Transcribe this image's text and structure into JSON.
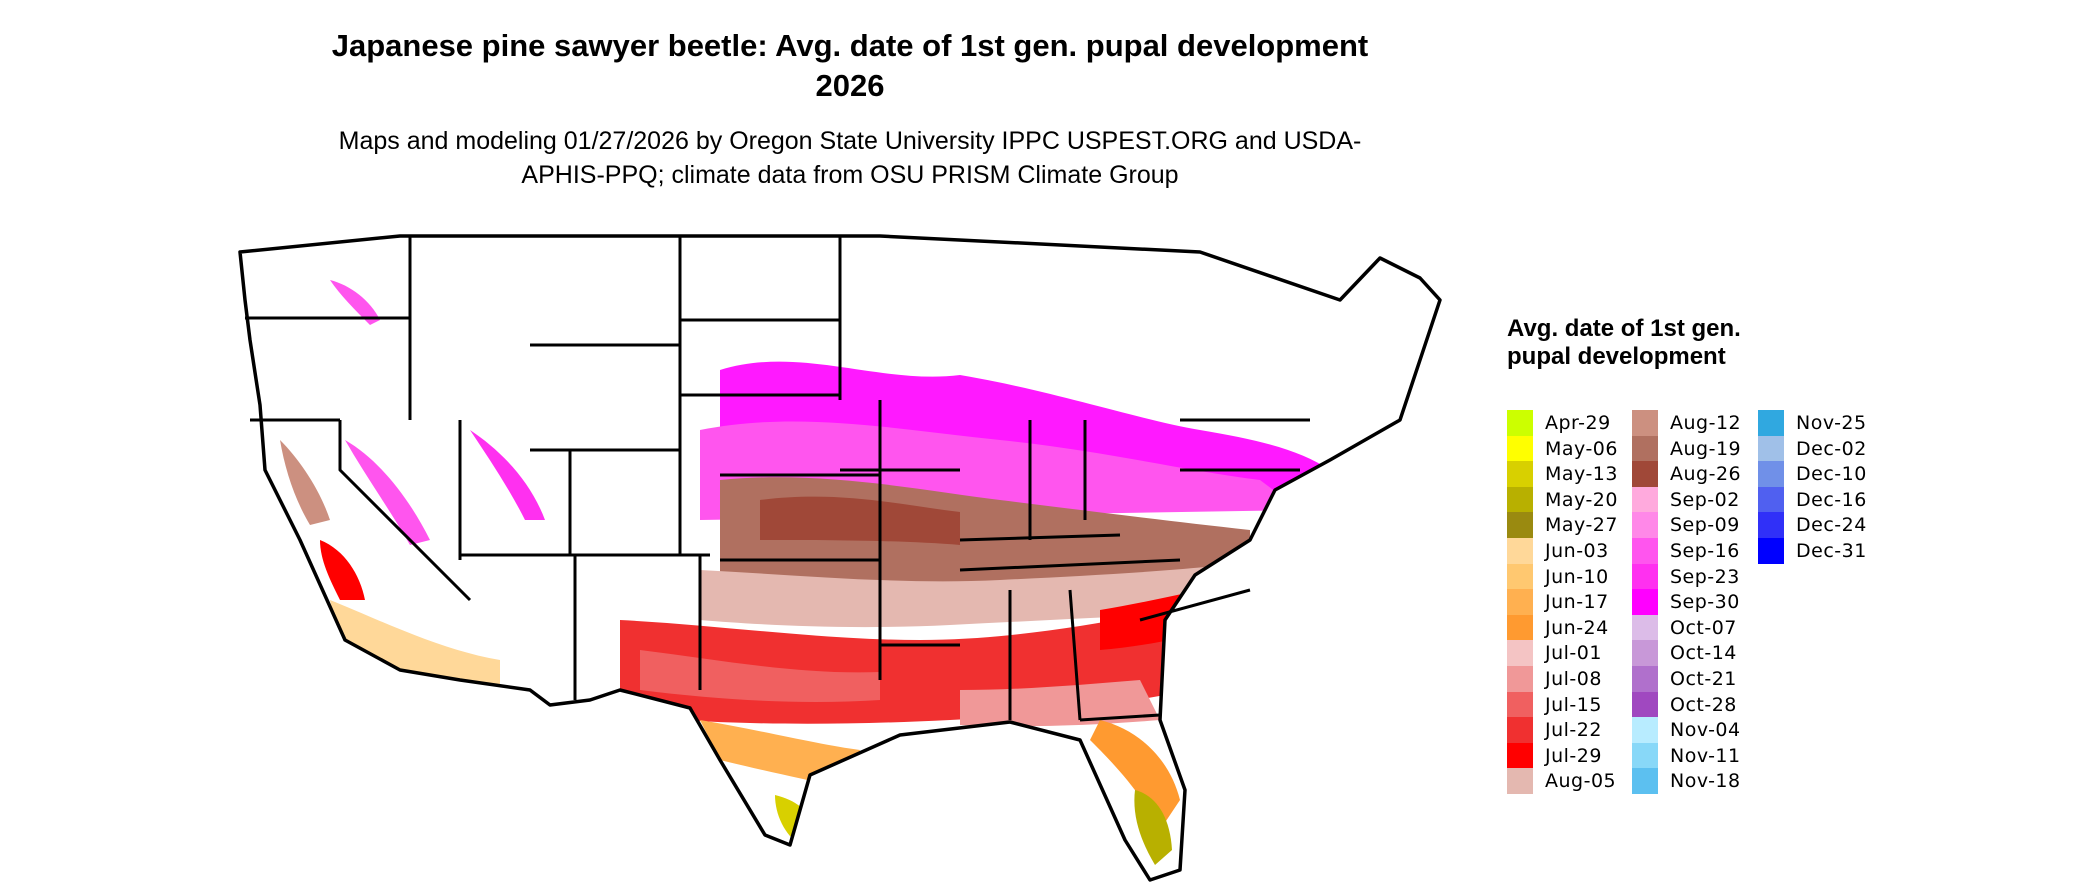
{
  "title": "Japanese pine sawyer beetle: Avg. date of 1st gen. pupal development 2026",
  "subtitle": "Maps and modeling 01/27/2026 by Oregon State University IPPC USPEST.ORG and USDA-APHIS-PPQ; climate data from OSU PRISM Climate Group",
  "legend": {
    "title": "Avg. date of 1st gen. pupal development",
    "items": [
      {
        "label": "Apr-29",
        "color": "#ccff00"
      },
      {
        "label": "May-06",
        "color": "#ffff00"
      },
      {
        "label": "May-13",
        "color": "#d8d000"
      },
      {
        "label": "May-20",
        "color": "#b8b000"
      },
      {
        "label": "May-27",
        "color": "#9a8a10"
      },
      {
        "label": "Jun-03",
        "color": "#ffd899"
      },
      {
        "label": "Jun-10",
        "color": "#ffc870"
      },
      {
        "label": "Jun-17",
        "color": "#ffb050"
      },
      {
        "label": "Jun-24",
        "color": "#ff9a30"
      },
      {
        "label": "Jul-01",
        "color": "#f4c4c4"
      },
      {
        "label": "Jul-08",
        "color": "#f09898"
      },
      {
        "label": "Jul-15",
        "color": "#f06060"
      },
      {
        "label": "Jul-22",
        "color": "#f03030"
      },
      {
        "label": "Jul-29",
        "color": "#ff0000"
      },
      {
        "label": "Aug-05",
        "color": "#e4b8b0"
      },
      {
        "label": "Aug-12",
        "color": "#cc9080"
      },
      {
        "label": "Aug-19",
        "color": "#b07060"
      },
      {
        "label": "Aug-26",
        "color": "#a04838"
      },
      {
        "label": "Sep-02",
        "color": "#ffaadd"
      },
      {
        "label": "Sep-09",
        "color": "#ff88e8"
      },
      {
        "label": "Sep-16",
        "color": "#ff55ee"
      },
      {
        "label": "Sep-23",
        "color": "#ff30f0"
      },
      {
        "label": "Sep-30",
        "color": "#ff00ff"
      },
      {
        "label": "Oct-07",
        "color": "#dcbce8"
      },
      {
        "label": "Oct-14",
        "color": "#c898d8"
      },
      {
        "label": "Oct-21",
        "color": "#b070cc"
      },
      {
        "label": "Oct-28",
        "color": "#a048c0"
      },
      {
        "label": "Nov-04",
        "color": "#b8ecff"
      },
      {
        "label": "Nov-11",
        "color": "#88d8f8"
      },
      {
        "label": "Nov-18",
        "color": "#5cc0f0"
      },
      {
        "label": "Nov-25",
        "color": "#30a8e0"
      },
      {
        "label": "Dec-02",
        "color": "#a0c0e8"
      },
      {
        "label": "Dec-10",
        "color": "#7090e8"
      },
      {
        "label": "Dec-16",
        "color": "#5060f0"
      },
      {
        "label": "Dec-24",
        "color": "#3030f8"
      },
      {
        "label": "Dec-31",
        "color": "#0000ff"
      }
    ]
  }
}
